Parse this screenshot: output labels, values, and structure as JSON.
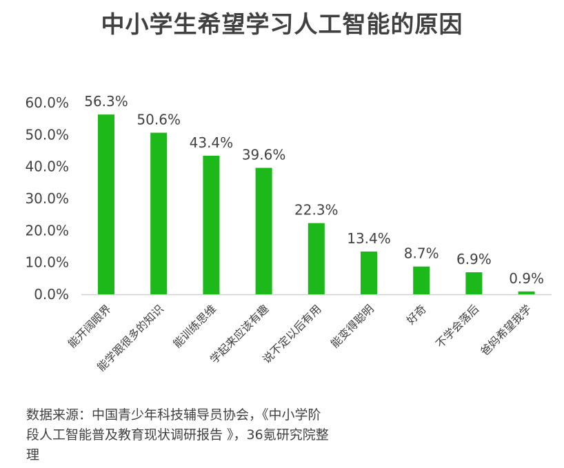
{
  "title": "中小学生希望学习人工智能的原因",
  "source": "数据来源：中国青少年科技辅导员协会，《中小学阶段人工智能普及教育现状调研报告 》，36氪研究院整理",
  "colors": {
    "bar": "#1db81a",
    "axis": "#d0d0d0",
    "text": "#404040"
  },
  "chart_data": {
    "type": "bar",
    "title": "中小学生希望学习人工智能的原因",
    "categories": [
      "能开阔眼界",
      "能学跟很多的知识",
      "能训练思维",
      "学起来应该有趣",
      "说不定以后有用",
      "能变得聪明",
      "好奇",
      "不学会落后",
      "爸妈希望我学"
    ],
    "values": [
      56.3,
      50.6,
      43.4,
      39.6,
      22.3,
      13.4,
      8.7,
      6.9,
      0.9
    ],
    "value_labels": [
      "56.3%",
      "50.6%",
      "43.4%",
      "39.6%",
      "22.3%",
      "13.4%",
      "8.7%",
      "6.9%",
      "0.9%"
    ],
    "y_ticks": [
      "0.0%",
      "10.0%",
      "20.0%",
      "30.0%",
      "40.0%",
      "50.0%",
      "60.0%"
    ],
    "ylim": [
      0,
      60
    ],
    "xlabel": "",
    "ylabel": "",
    "grid": false,
    "legend": "none"
  }
}
